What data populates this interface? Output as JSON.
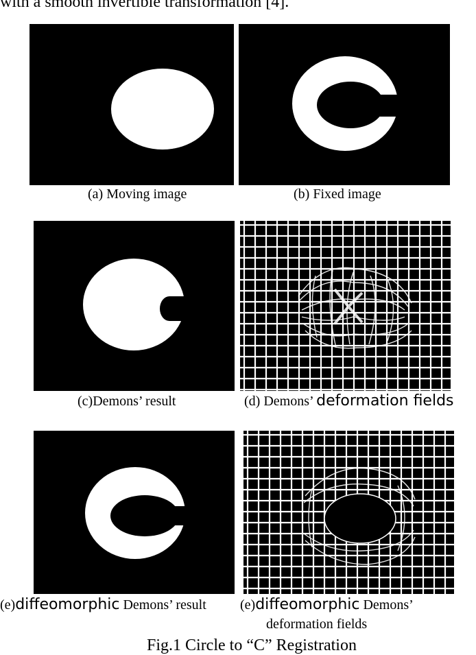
{
  "top_text": "with a smooth invertible transformation [4].",
  "captions": {
    "a": "(a) Moving image",
    "b": "(b) Fixed image",
    "c": "(c)Demons’ result",
    "d_prefix": "(d) Demons’",
    "d_suffix": "deformation fields",
    "e1_prefix": "(e)",
    "e1_word": "diffeomorphic",
    "e1_suffix": "Demons’ result",
    "e2_prefix": "(e)",
    "e2_word": "diffeomorphic",
    "e2_suffix": "Demons’",
    "e2_line2": "deformation fields"
  },
  "figure_caption": "Fig.1 Circle to “C” Registration"
}
